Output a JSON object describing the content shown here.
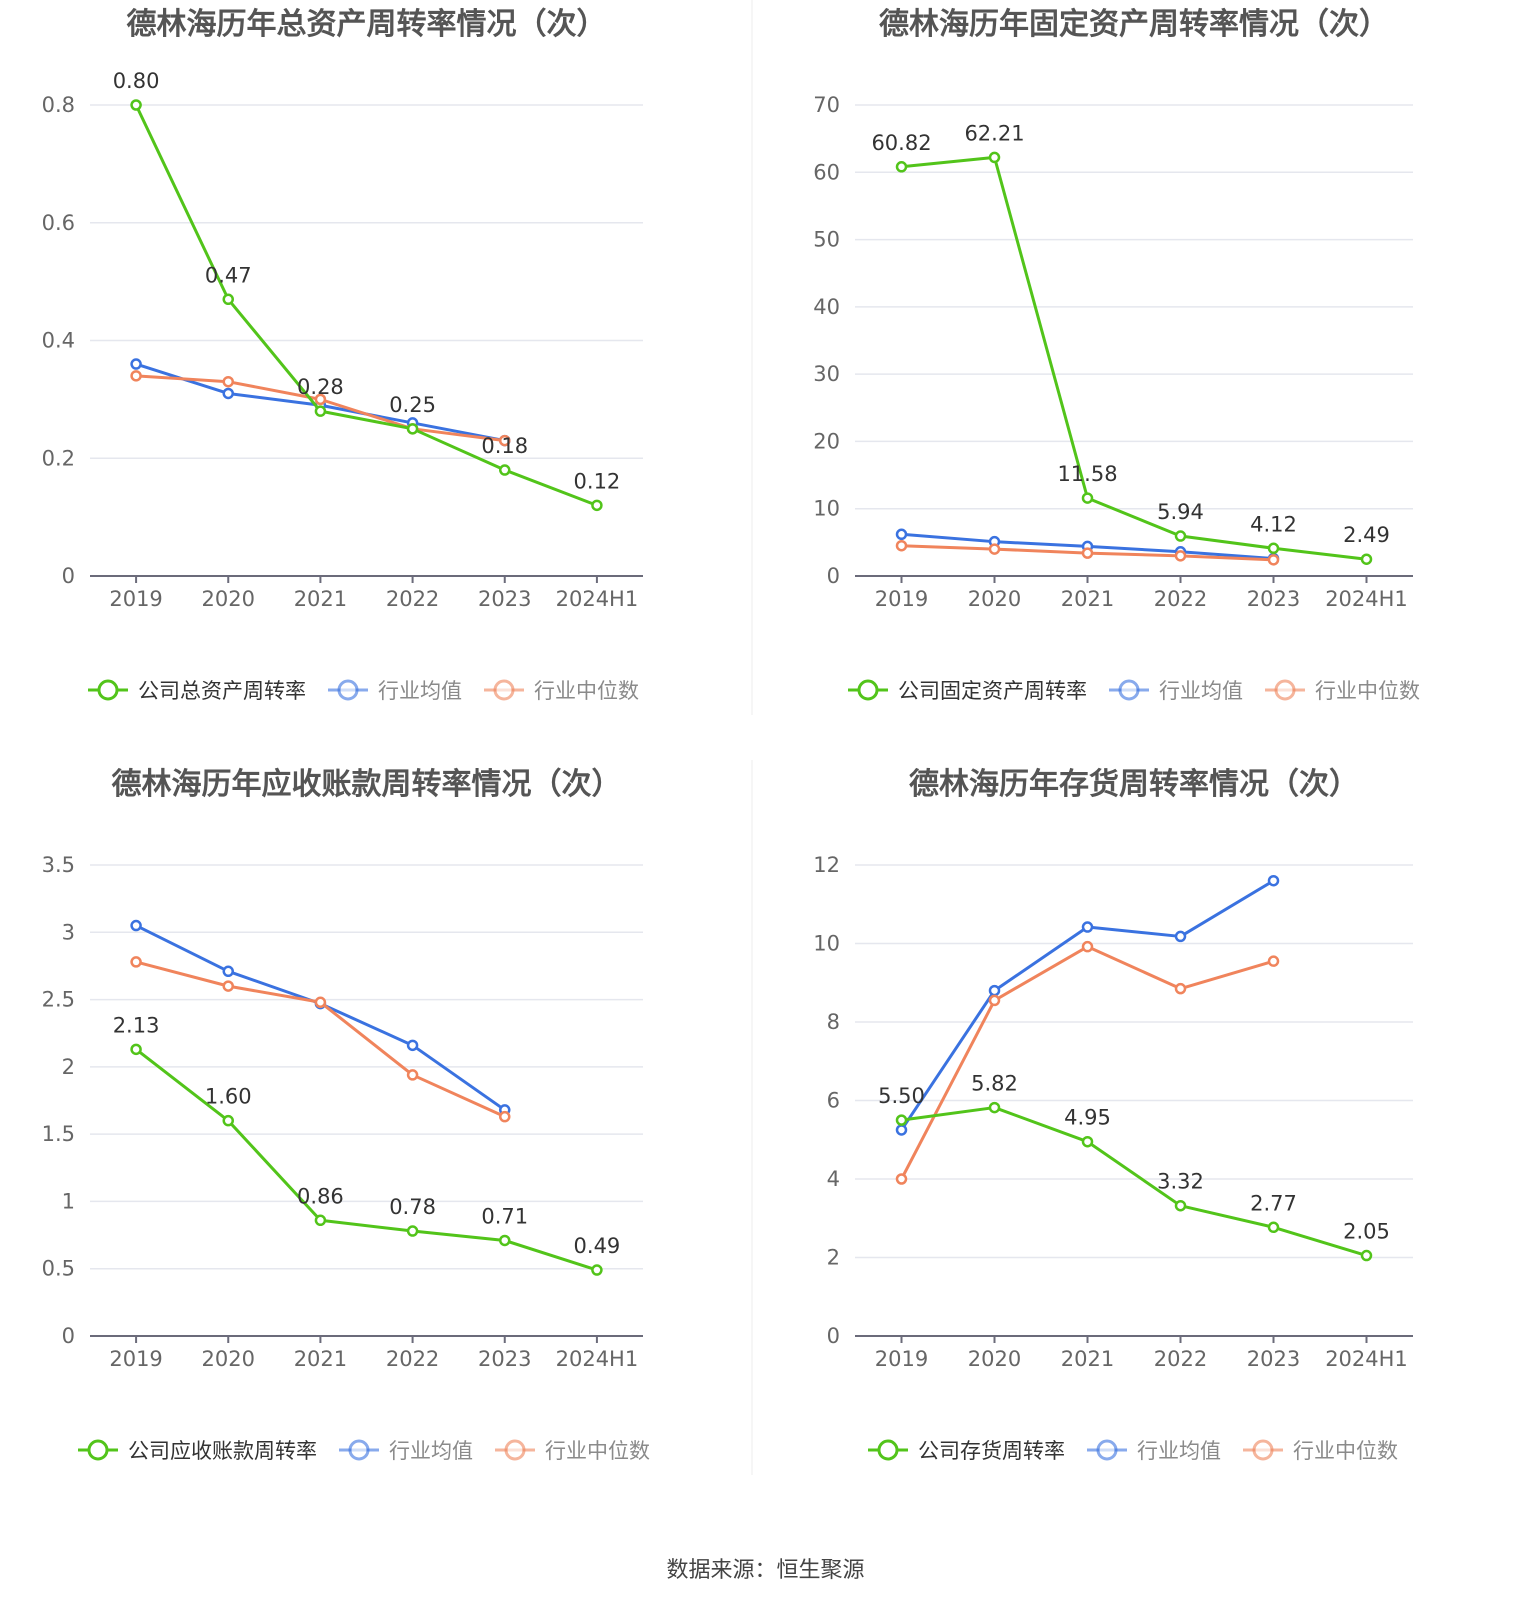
{
  "colors": {
    "company": "#52c41a",
    "mean": "#3a72e0",
    "median": "#f0845c",
    "axis": "#6b6b7a",
    "grid": "#e5e7ee",
    "tick": "#666666",
    "label": "#333333",
    "title": "#555555"
  },
  "source": "数据来源：恒生聚源",
  "chart_data": [
    {
      "type": "line",
      "title": "德林海历年总资产周转率情况（次）",
      "categories": [
        "2019",
        "2020",
        "2021",
        "2022",
        "2023",
        "2024H1"
      ],
      "yticks": [
        0,
        0.2,
        0.4,
        0.6,
        0.8
      ],
      "ytick_labels": [
        "0",
        "0.2",
        "0.4",
        "0.6",
        "0.8"
      ],
      "ylim": [
        0,
        0.8
      ],
      "grid": true,
      "legend_position": "bottom",
      "series": [
        {
          "name": "公司总资产周转率",
          "key": "company",
          "values": [
            0.8,
            0.47,
            0.28,
            0.25,
            0.18,
            0.12
          ],
          "labels": [
            "0.80",
            "0.47",
            "0.28",
            "0.25",
            "0.18",
            "0.12"
          ]
        },
        {
          "name": "行业均值",
          "key": "mean",
          "values": [
            0.36,
            0.31,
            0.29,
            0.26,
            0.23,
            null
          ]
        },
        {
          "name": "行业中位数",
          "key": "median",
          "values": [
            0.34,
            0.33,
            0.3,
            0.25,
            0.23,
            null
          ]
        }
      ]
    },
    {
      "type": "line",
      "title": "德林海历年固定资产周转率情况（次）",
      "categories": [
        "2019",
        "2020",
        "2021",
        "2022",
        "2023",
        "2024H1"
      ],
      "yticks": [
        0,
        10,
        20,
        30,
        40,
        50,
        60,
        70
      ],
      "ytick_labels": [
        "0",
        "10",
        "20",
        "30",
        "40",
        "50",
        "60",
        "70"
      ],
      "ylim": [
        0,
        70
      ],
      "grid": true,
      "legend_position": "bottom",
      "series": [
        {
          "name": "公司固定资产周转率",
          "key": "company",
          "values": [
            60.82,
            62.21,
            11.58,
            5.94,
            4.12,
            2.49
          ],
          "labels": [
            "60.82",
            "62.21",
            "11.58",
            "5.94",
            "4.12",
            "2.49"
          ]
        },
        {
          "name": "行业均值",
          "key": "mean",
          "values": [
            6.2,
            5.1,
            4.4,
            3.6,
            2.6,
            null
          ]
        },
        {
          "name": "行业中位数",
          "key": "median",
          "values": [
            4.5,
            4.0,
            3.4,
            3.0,
            2.4,
            null
          ]
        }
      ]
    },
    {
      "type": "line",
      "title": "德林海历年应收账款周转率情况（次）",
      "categories": [
        "2019",
        "2020",
        "2021",
        "2022",
        "2023",
        "2024H1"
      ],
      "yticks": [
        0,
        0.5,
        1,
        1.5,
        2,
        2.5,
        3,
        3.5
      ],
      "ytick_labels": [
        "0",
        "0.5",
        "1",
        "1.5",
        "2",
        "2.5",
        "3",
        "3.5"
      ],
      "ylim": [
        0,
        3.5
      ],
      "grid": true,
      "legend_position": "bottom",
      "series": [
        {
          "name": "公司应收账款周转率",
          "key": "company",
          "values": [
            2.13,
            1.6,
            0.86,
            0.78,
            0.71,
            0.49
          ],
          "labels": [
            "2.13",
            "1.60",
            "0.86",
            "0.78",
            "0.71",
            "0.49"
          ]
        },
        {
          "name": "行业均值",
          "key": "mean",
          "values": [
            3.05,
            2.71,
            2.47,
            2.16,
            1.68,
            null
          ]
        },
        {
          "name": "行业中位数",
          "key": "median",
          "values": [
            2.78,
            2.6,
            2.48,
            1.94,
            1.63,
            null
          ]
        }
      ]
    },
    {
      "type": "line",
      "title": "德林海历年存货周转率情况（次）",
      "categories": [
        "2019",
        "2020",
        "2021",
        "2022",
        "2023",
        "2024H1"
      ],
      "yticks": [
        0,
        2,
        4,
        6,
        8,
        10,
        12
      ],
      "ytick_labels": [
        "0",
        "2",
        "4",
        "6",
        "8",
        "10",
        "12"
      ],
      "ylim": [
        0,
        12
      ],
      "grid": true,
      "legend_position": "bottom",
      "series": [
        {
          "name": "公司存货周转率",
          "key": "company",
          "values": [
            5.5,
            5.82,
            4.95,
            3.32,
            2.77,
            2.05
          ],
          "labels": [
            "5.50",
            "5.82",
            "4.95",
            "3.32",
            "2.77",
            "2.05"
          ]
        },
        {
          "name": "行业均值",
          "key": "mean",
          "values": [
            5.25,
            8.8,
            10.42,
            10.18,
            11.6,
            null
          ]
        },
        {
          "name": "行业中位数",
          "key": "median",
          "values": [
            4.0,
            8.55,
            9.92,
            8.85,
            9.55,
            null
          ]
        }
      ]
    }
  ]
}
